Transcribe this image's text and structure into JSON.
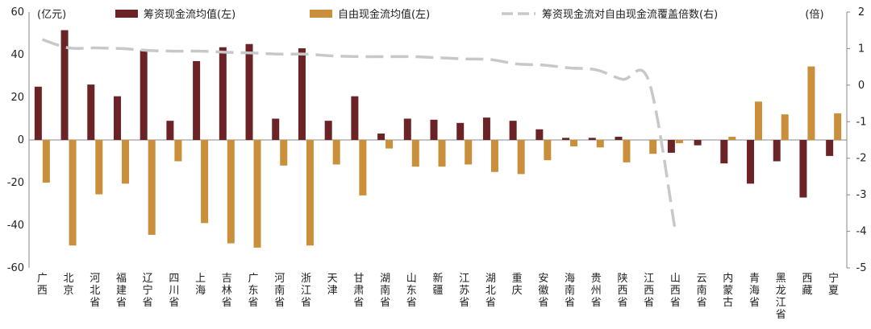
{
  "chart_data": {
    "type": "bar",
    "y_unit_left": "(亿元)",
    "y_unit_right": "(倍)",
    "categories": [
      "广西",
      "北京",
      "河北省",
      "福建省",
      "辽宁省",
      "四川省",
      "上海",
      "吉林省",
      "广东省",
      "河南省",
      "浙江省",
      "天津",
      "甘肃省",
      "湖南省",
      "山东省",
      "新疆",
      "江苏省",
      "湖北省",
      "重庆",
      "安徽省",
      "海南省",
      "贵州省",
      "陕西省",
      "江西省",
      "山西省",
      "云南省",
      "内蒙古",
      "青海省",
      "黑龙江省",
      "西藏",
      "宁夏"
    ],
    "ylim_left": [
      -60,
      60
    ],
    "yticks_left": [
      -60,
      -40,
      -20,
      0,
      20,
      40,
      60
    ],
    "ylim_right": [
      -5,
      2
    ],
    "yticks_right": [
      -5,
      -4,
      -3,
      -2,
      -1,
      0,
      1,
      2
    ],
    "series": [
      {
        "name": "筹资现金流均值(左)",
        "kind": "bar",
        "axis": "left",
        "color": "#6b2326",
        "values": [
          25,
          51.5,
          26,
          20.5,
          42,
          9,
          37,
          43.5,
          45,
          10,
          43,
          9,
          20.5,
          3,
          10,
          9.5,
          8,
          10.5,
          9,
          5,
          1,
          1,
          1.5,
          0,
          -6,
          -2.5,
          -11,
          -20.5,
          -10,
          -27,
          -7.5
        ]
      },
      {
        "name": "自由现金流均值(左)",
        "kind": "bar",
        "axis": "left",
        "color": "#c98f3a",
        "values": [
          -20,
          -49.5,
          -25.5,
          -20.5,
          -44.5,
          -10,
          -39,
          -48.5,
          -50.5,
          -12,
          -49.5,
          -11.5,
          -26,
          -4,
          -12.5,
          -12.5,
          -11.5,
          -15,
          -16,
          -9.5,
          -3,
          -3.5,
          -10.5,
          -6.5,
          -1.5,
          0,
          1.5,
          18,
          12,
          34.5,
          12.5
        ]
      },
      {
        "name": "筹资现金流对自由现金流覆盖倍数(右)",
        "kind": "line",
        "axis": "right",
        "color": "#c8c8c8",
        "dash": true,
        "values": [
          1.25,
          1.02,
          1.02,
          1.0,
          0.95,
          0.93,
          0.93,
          0.9,
          0.88,
          0.85,
          0.85,
          0.8,
          0.78,
          0.78,
          0.78,
          0.75,
          0.72,
          0.7,
          0.58,
          0.55,
          0.47,
          0.42,
          0.16,
          0.1,
          -4.0,
          null,
          null,
          null,
          null,
          null,
          null
        ]
      }
    ],
    "legend_position": "top",
    "grid": false
  }
}
